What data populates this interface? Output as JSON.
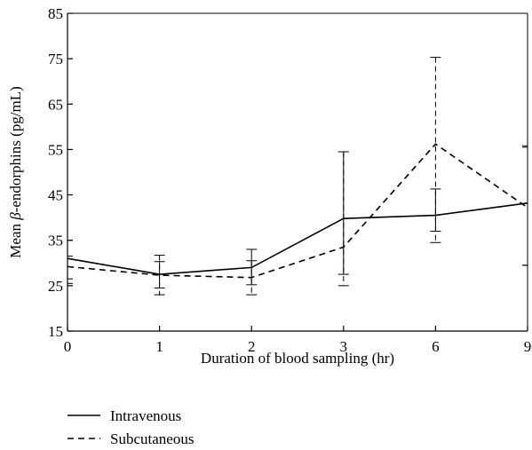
{
  "chart_data": {
    "type": "line",
    "xlabel": "Duration of blood sampling (hr)",
    "ylabel_pre": "Mean ",
    "ylabel_greek": "β",
    "ylabel_post": "-endorphins (pg/mL)",
    "categories": [
      "0",
      "1",
      "2",
      "3",
      "6",
      "9"
    ],
    "ylim": [
      15,
      85
    ],
    "yticks": [
      15,
      25,
      35,
      45,
      55,
      65,
      75,
      85
    ],
    "grid": false,
    "legend_position": "bottom-left",
    "series": [
      {
        "name": "Intravenous",
        "style": "solid",
        "values": [
          31,
          27.5,
          29,
          39.8,
          40.5,
          43.2
        ],
        "err_low": [
          26.5,
          24.5,
          25.2,
          27.5,
          37,
          29.5
        ],
        "err_high": [
          35,
          30.3,
          33,
          54.5,
          46.3,
          55.5
        ]
      },
      {
        "name": "Subcutaneous",
        "style": "dashed",
        "values": [
          29.2,
          27.3,
          26.8,
          33.5,
          56.2,
          42.2
        ],
        "err_low": [
          25.5,
          23,
          23,
          25,
          34.5,
          29.5
        ],
        "err_high": [
          31.5,
          31.7,
          30.5,
          54.5,
          75.3,
          55.8
        ]
      }
    ]
  }
}
